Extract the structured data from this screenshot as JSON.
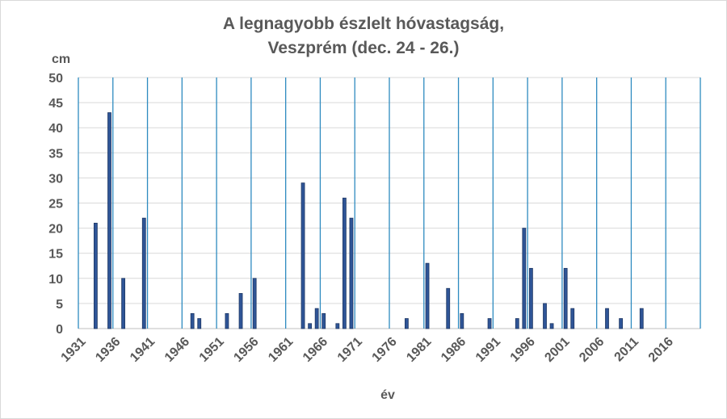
{
  "chart_data": {
    "type": "bar",
    "title": [
      "A legnagyobb észlelt hóvastagság,",
      "Veszprém (dec. 24 - 26.)"
    ],
    "xlabel": "év",
    "ylabel": "cm",
    "ylim": [
      0,
      50
    ],
    "xlim": [
      1931,
      2021
    ],
    "yticks": [
      0,
      5,
      10,
      15,
      20,
      25,
      30,
      35,
      40,
      45,
      50
    ],
    "xticks": [
      1931,
      1936,
      1941,
      1946,
      1951,
      1956,
      1961,
      1966,
      1971,
      1976,
      1981,
      1986,
      1991,
      1996,
      2001,
      2006,
      2011,
      2016
    ],
    "vertical_gridlines": [
      1931,
      1936,
      1941,
      1946,
      1951,
      1956,
      1961,
      1966,
      1971,
      1976,
      1981,
      1986,
      1991,
      1996,
      2001,
      2006,
      2011,
      2016,
      2021
    ],
    "grid": true,
    "colors": {
      "bar": "#2f5597",
      "bar_edge": "#1f3864",
      "vgrid": "#2e8bc0",
      "hgrid": "#d9d9d9",
      "text": "#595959"
    },
    "x": [
      1933,
      1935,
      1937,
      1940,
      1947,
      1948,
      1952,
      1954,
      1956,
      1963,
      1964,
      1965,
      1966,
      1968,
      1969,
      1970,
      1978,
      1981,
      1984,
      1986,
      1990,
      1994,
      1995,
      1996,
      1998,
      1999,
      2001,
      2002,
      2007,
      2009,
      2012
    ],
    "values": [
      21,
      43,
      10,
      22,
      3,
      2,
      3,
      7,
      10,
      29,
      1,
      4,
      3,
      1,
      26,
      22,
      2,
      13,
      8,
      3,
      2,
      2,
      20,
      12,
      5,
      1,
      12,
      4,
      4,
      2,
      4
    ]
  }
}
